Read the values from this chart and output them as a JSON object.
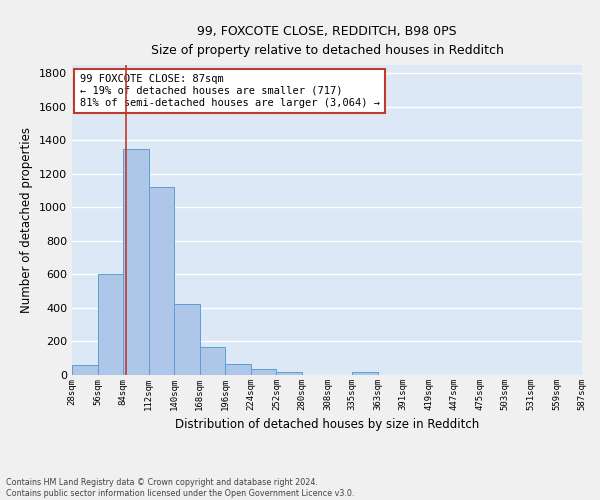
{
  "title": "99, FOXCOTE CLOSE, REDDITCH, B98 0PS",
  "subtitle": "Size of property relative to detached houses in Redditch",
  "xlabel": "Distribution of detached houses by size in Redditch",
  "ylabel": "Number of detached properties",
  "bar_edges": [
    28,
    56,
    84,
    112,
    140,
    168,
    196,
    224,
    252,
    280,
    308,
    335,
    363,
    391,
    419,
    447,
    475,
    503,
    531,
    559,
    587
  ],
  "bar_heights": [
    60,
    600,
    1350,
    1120,
    425,
    170,
    65,
    38,
    17,
    0,
    0,
    17,
    0,
    0,
    0,
    0,
    0,
    0,
    0,
    0
  ],
  "bar_color": "#aec6e8",
  "bar_edge_color": "#5a9fd4",
  "vline_x": 87,
  "vline_color": "#c0392b",
  "annotation_line1": "99 FOXCOTE CLOSE: 87sqm",
  "annotation_line2": "← 19% of detached houses are smaller (717)",
  "annotation_line3": "81% of semi-detached houses are larger (3,064) →",
  "annotation_box_color": "#ffffff",
  "annotation_border_color": "#c0392b",
  "ylim": [
    0,
    1850
  ],
  "yticks": [
    0,
    200,
    400,
    600,
    800,
    1000,
    1200,
    1400,
    1600,
    1800
  ],
  "bg_color": "#dce8f5",
  "grid_color": "#ffffff",
  "footer_line1": "Contains HM Land Registry data © Crown copyright and database right 2024.",
  "footer_line2": "Contains public sector information licensed under the Open Government Licence v3.0.",
  "tick_labels": [
    "28sqm",
    "56sqm",
    "84sqm",
    "112sqm",
    "140sqm",
    "168sqm",
    "196sqm",
    "224sqm",
    "252sqm",
    "280sqm",
    "308sqm",
    "335sqm",
    "363sqm",
    "391sqm",
    "419sqm",
    "447sqm",
    "475sqm",
    "503sqm",
    "531sqm",
    "559sqm",
    "587sqm"
  ]
}
